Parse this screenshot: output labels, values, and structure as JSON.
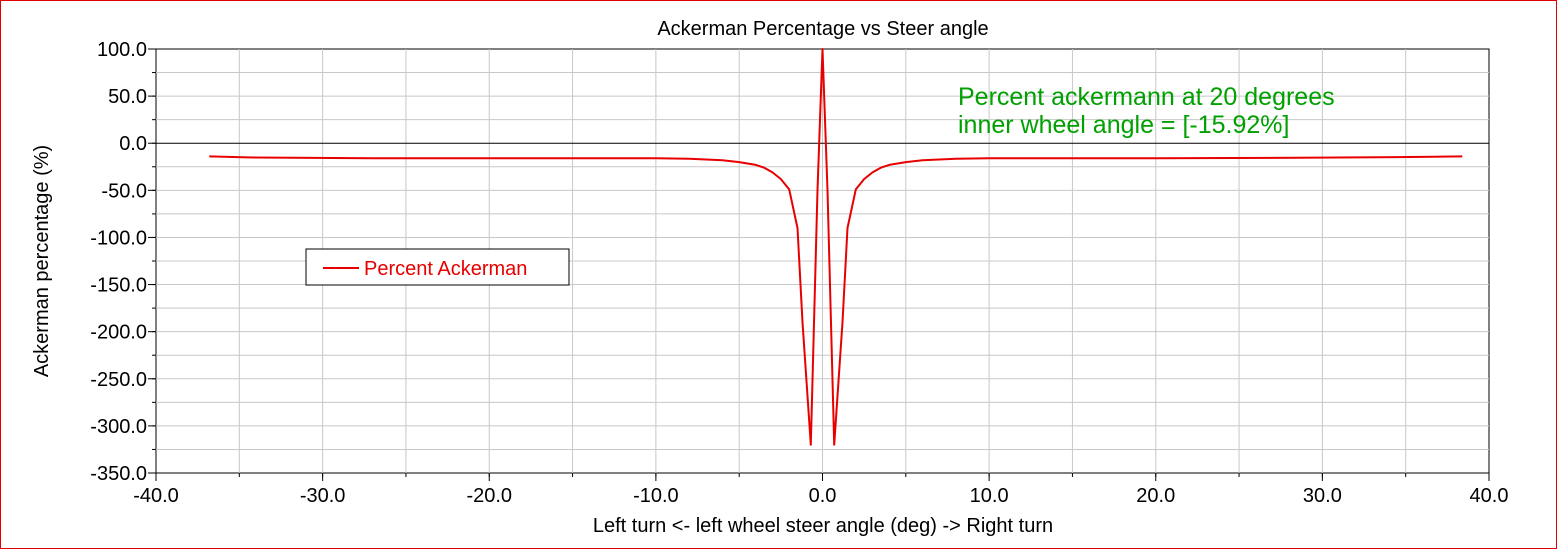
{
  "chart_data": {
    "type": "line",
    "title": "Ackerman Percentage vs Steer angle",
    "xlabel": "Left turn <- left wheel steer angle (deg) -> Right turn",
    "ylabel": "Ackerman percentage (%)",
    "xlim": [
      -40,
      40
    ],
    "ylim": [
      -350,
      100
    ],
    "grid": true,
    "x_ticks": [
      -40,
      -30,
      -20,
      -10,
      0,
      10,
      20,
      30,
      40
    ],
    "x_tick_labels": [
      "-40.0",
      "-30.0",
      "-20.0",
      "-10.0",
      "0.0",
      "10.0",
      "20.0",
      "30.0",
      "40.0"
    ],
    "y_ticks": [
      100,
      50,
      0,
      -50,
      -100,
      -150,
      -200,
      -250,
      -300,
      -350
    ],
    "y_tick_labels": [
      "100.0",
      "50.0",
      "0.0",
      "-50.0",
      "-100.0",
      "-150.0",
      "-200.0",
      "-250.0",
      "-300.0",
      "-350.0"
    ],
    "legend": {
      "position": "left-middle",
      "entries": [
        {
          "name": "Percent Ackerman",
          "color": "#e80000"
        }
      ]
    },
    "annotation": {
      "lines": [
        "Percent ackermann at 20 degrees",
        "inner wheel angle = [-15.92%]"
      ],
      "color": "#00a000"
    },
    "series": [
      {
        "name": "Percent Ackerman",
        "color": "#e80000",
        "x": [
          -36.8,
          -34.5,
          -27.0,
          -20.0,
          -15.0,
          -10.0,
          -8.0,
          -6.0,
          -5.0,
          -4.0,
          -3.5,
          -3.0,
          -2.5,
          -2.0,
          -1.5,
          -1.2,
          -0.7,
          -0.3,
          0.0,
          0.3,
          0.7,
          1.2,
          1.5,
          2.0,
          2.5,
          3.0,
          3.5,
          4.0,
          5.0,
          6.0,
          8.0,
          10.0,
          15.0,
          20.0,
          28.5,
          36.0,
          38.4
        ],
        "y": [
          -14,
          -15,
          -16,
          -16,
          -16,
          -16,
          -16.5,
          -18,
          -20,
          -23,
          -26,
          -31,
          -38,
          -49,
          -90,
          -190,
          -320,
          -50,
          100,
          -50,
          -320,
          -190,
          -90,
          -49,
          -38,
          -31,
          -26,
          -23,
          -20,
          -18,
          -16.5,
          -16,
          -16,
          -16,
          -15.5,
          -14.5,
          -14
        ]
      }
    ]
  }
}
